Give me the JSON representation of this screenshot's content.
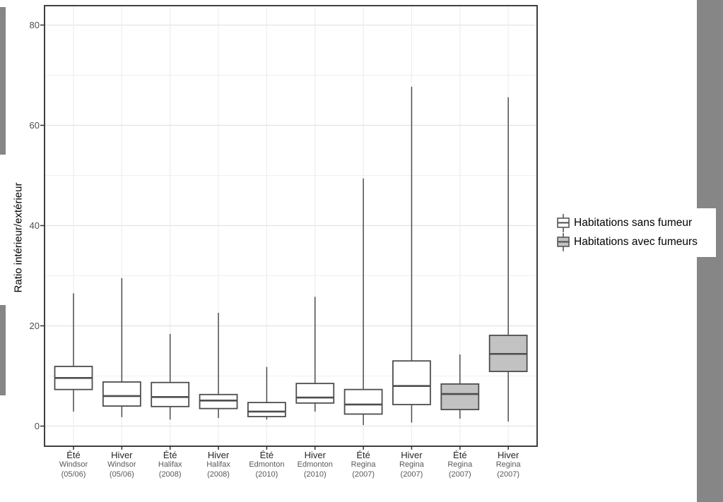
{
  "colors": {
    "background_gray": "#868686",
    "panel_border": "#404040",
    "box_stroke": "#4d4d4d",
    "gridline_major": "#e3e3e3",
    "gridline_minor": "#f0f0f0"
  },
  "legend": {
    "items": [
      {
        "key": "sans_fumeur",
        "label": "Habitations sans fumeur",
        "fill": "#ffffff"
      },
      {
        "key": "avec_fumeurs",
        "label": "Habitations avec fumeurs",
        "fill": "#c2c2c2"
      }
    ]
  },
  "chart_data": {
    "type": "boxplot",
    "title": "",
    "xlabel": "",
    "ylabel": "Ratio intérieur/extérieur",
    "ylim": [
      -4,
      84
    ],
    "yticks": [
      0,
      20,
      40,
      60,
      80
    ],
    "minor_gridlines": [
      10,
      30,
      50,
      70
    ],
    "grid": "on",
    "legend_position": "right-outside",
    "groups": {
      "sans_fumeur": {
        "label": "Habitations sans fumeur",
        "fill": "#ffffff"
      },
      "avec_fumeurs": {
        "label": "Habitations avec fumeurs",
        "fill": "#c2c2c2"
      }
    },
    "categories": [
      {
        "season": "Été",
        "city": "Windsor",
        "year": "(05/06)",
        "group": "sans_fumeur",
        "min": 2.9,
        "q1": 7.3,
        "median": 9.6,
        "q3": 11.9,
        "max": 26.5
      },
      {
        "season": "Hiver",
        "city": "Windsor",
        "year": "(05/06)",
        "group": "sans_fumeur",
        "min": 1.8,
        "q1": 4.0,
        "median": 6.0,
        "q3": 8.8,
        "max": 29.5
      },
      {
        "season": "Été",
        "city": "Halifax",
        "year": "(2008)",
        "group": "sans_fumeur",
        "min": 1.3,
        "q1": 3.9,
        "median": 5.8,
        "q3": 8.7,
        "max": 18.4
      },
      {
        "season": "Hiver",
        "city": "Halifax",
        "year": "(2008)",
        "group": "sans_fumeur",
        "min": 1.6,
        "q1": 3.5,
        "median": 5.1,
        "q3": 6.3,
        "max": 22.6
      },
      {
        "season": "Été",
        "city": "Edmonton",
        "year": "(2010)",
        "group": "sans_fumeur",
        "min": 1.3,
        "q1": 1.9,
        "median": 2.9,
        "q3": 4.7,
        "max": 11.8
      },
      {
        "season": "Hiver",
        "city": "Edmonton",
        "year": "(2010)",
        "group": "sans_fumeur",
        "min": 2.9,
        "q1": 4.6,
        "median": 5.7,
        "q3": 8.5,
        "max": 25.8
      },
      {
        "season": "Été",
        "city": "Regina",
        "year": "(2007)",
        "group": "sans_fumeur",
        "min": 0.2,
        "q1": 2.4,
        "median": 4.3,
        "q3": 7.3,
        "max": 49.4
      },
      {
        "season": "Hiver",
        "city": "Regina",
        "year": "(2007)",
        "group": "sans_fumeur",
        "min": 0.7,
        "q1": 4.3,
        "median": 8.0,
        "q3": 13.0,
        "max": 67.7
      },
      {
        "season": "Été",
        "city": "Regina",
        "year": "(2007)",
        "group": "avec_fumeurs",
        "min": 1.5,
        "q1": 3.3,
        "median": 6.4,
        "q3": 8.4,
        "max": 14.3
      },
      {
        "season": "Hiver",
        "city": "Regina",
        "year": "(2007)",
        "group": "avec_fumeurs",
        "min": 0.9,
        "q1": 10.9,
        "median": 14.4,
        "q3": 18.1,
        "max": 65.6
      }
    ]
  }
}
